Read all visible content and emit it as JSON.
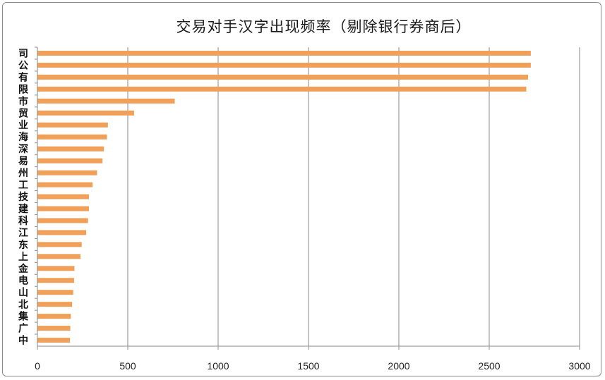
{
  "chart_data": {
    "type": "bar",
    "orientation": "horizontal",
    "title": "交易对手汉字出现频率（剔除银行券商后）",
    "categories": [
      "司",
      "公",
      "有",
      "限",
      "市",
      "贸",
      "业",
      "海",
      "深",
      "易",
      "州",
      "工",
      "技",
      "建",
      "科",
      "江",
      "东",
      "上",
      "金",
      "电",
      "山",
      "北",
      "集",
      "广",
      "中"
    ],
    "values": [
      2730,
      2730,
      2715,
      2705,
      760,
      535,
      390,
      385,
      368,
      360,
      330,
      305,
      285,
      285,
      280,
      270,
      245,
      238,
      205,
      203,
      198,
      192,
      185,
      182,
      180
    ],
    "xlim": [
      0,
      3000
    ],
    "xticks": [
      0,
      500,
      1000,
      1500,
      2000,
      2500,
      3000
    ],
    "grid": "vertical",
    "legend": "none",
    "bar_color": "#F0A058",
    "xlabel": "",
    "ylabel": ""
  }
}
